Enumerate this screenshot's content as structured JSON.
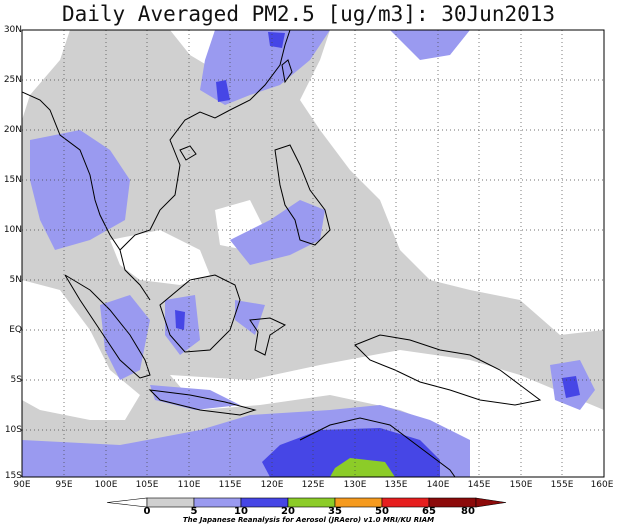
{
  "title": "Daily Averaged PM2.5 [ug/m3]: 30Jun2013",
  "lat_labels": [
    "30N",
    "25N",
    "20N",
    "15N",
    "10N",
    "5N",
    "EQ",
    "5S",
    "10S",
    "15S"
  ],
  "lon_labels": [
    "90E",
    "95E",
    "100E",
    "105E",
    "110E",
    "115E",
    "120E",
    "125E",
    "130E",
    "135E",
    "140E",
    "145E",
    "150E",
    "155E",
    "160E"
  ],
  "colorbar": {
    "ticks": [
      "0",
      "5",
      "10",
      "20",
      "35",
      "50",
      "65",
      "80"
    ],
    "colors": [
      "#ffffff",
      "#d0d0d0",
      "#9a9af0",
      "#4646e6",
      "#8ccc28",
      "#f59a1e",
      "#e61e1e",
      "#8c0a0a"
    ]
  },
  "credit": "The Japanese Reanalysis for Aerosol (JRAero) v1.0 MRI/KU RIAM"
}
